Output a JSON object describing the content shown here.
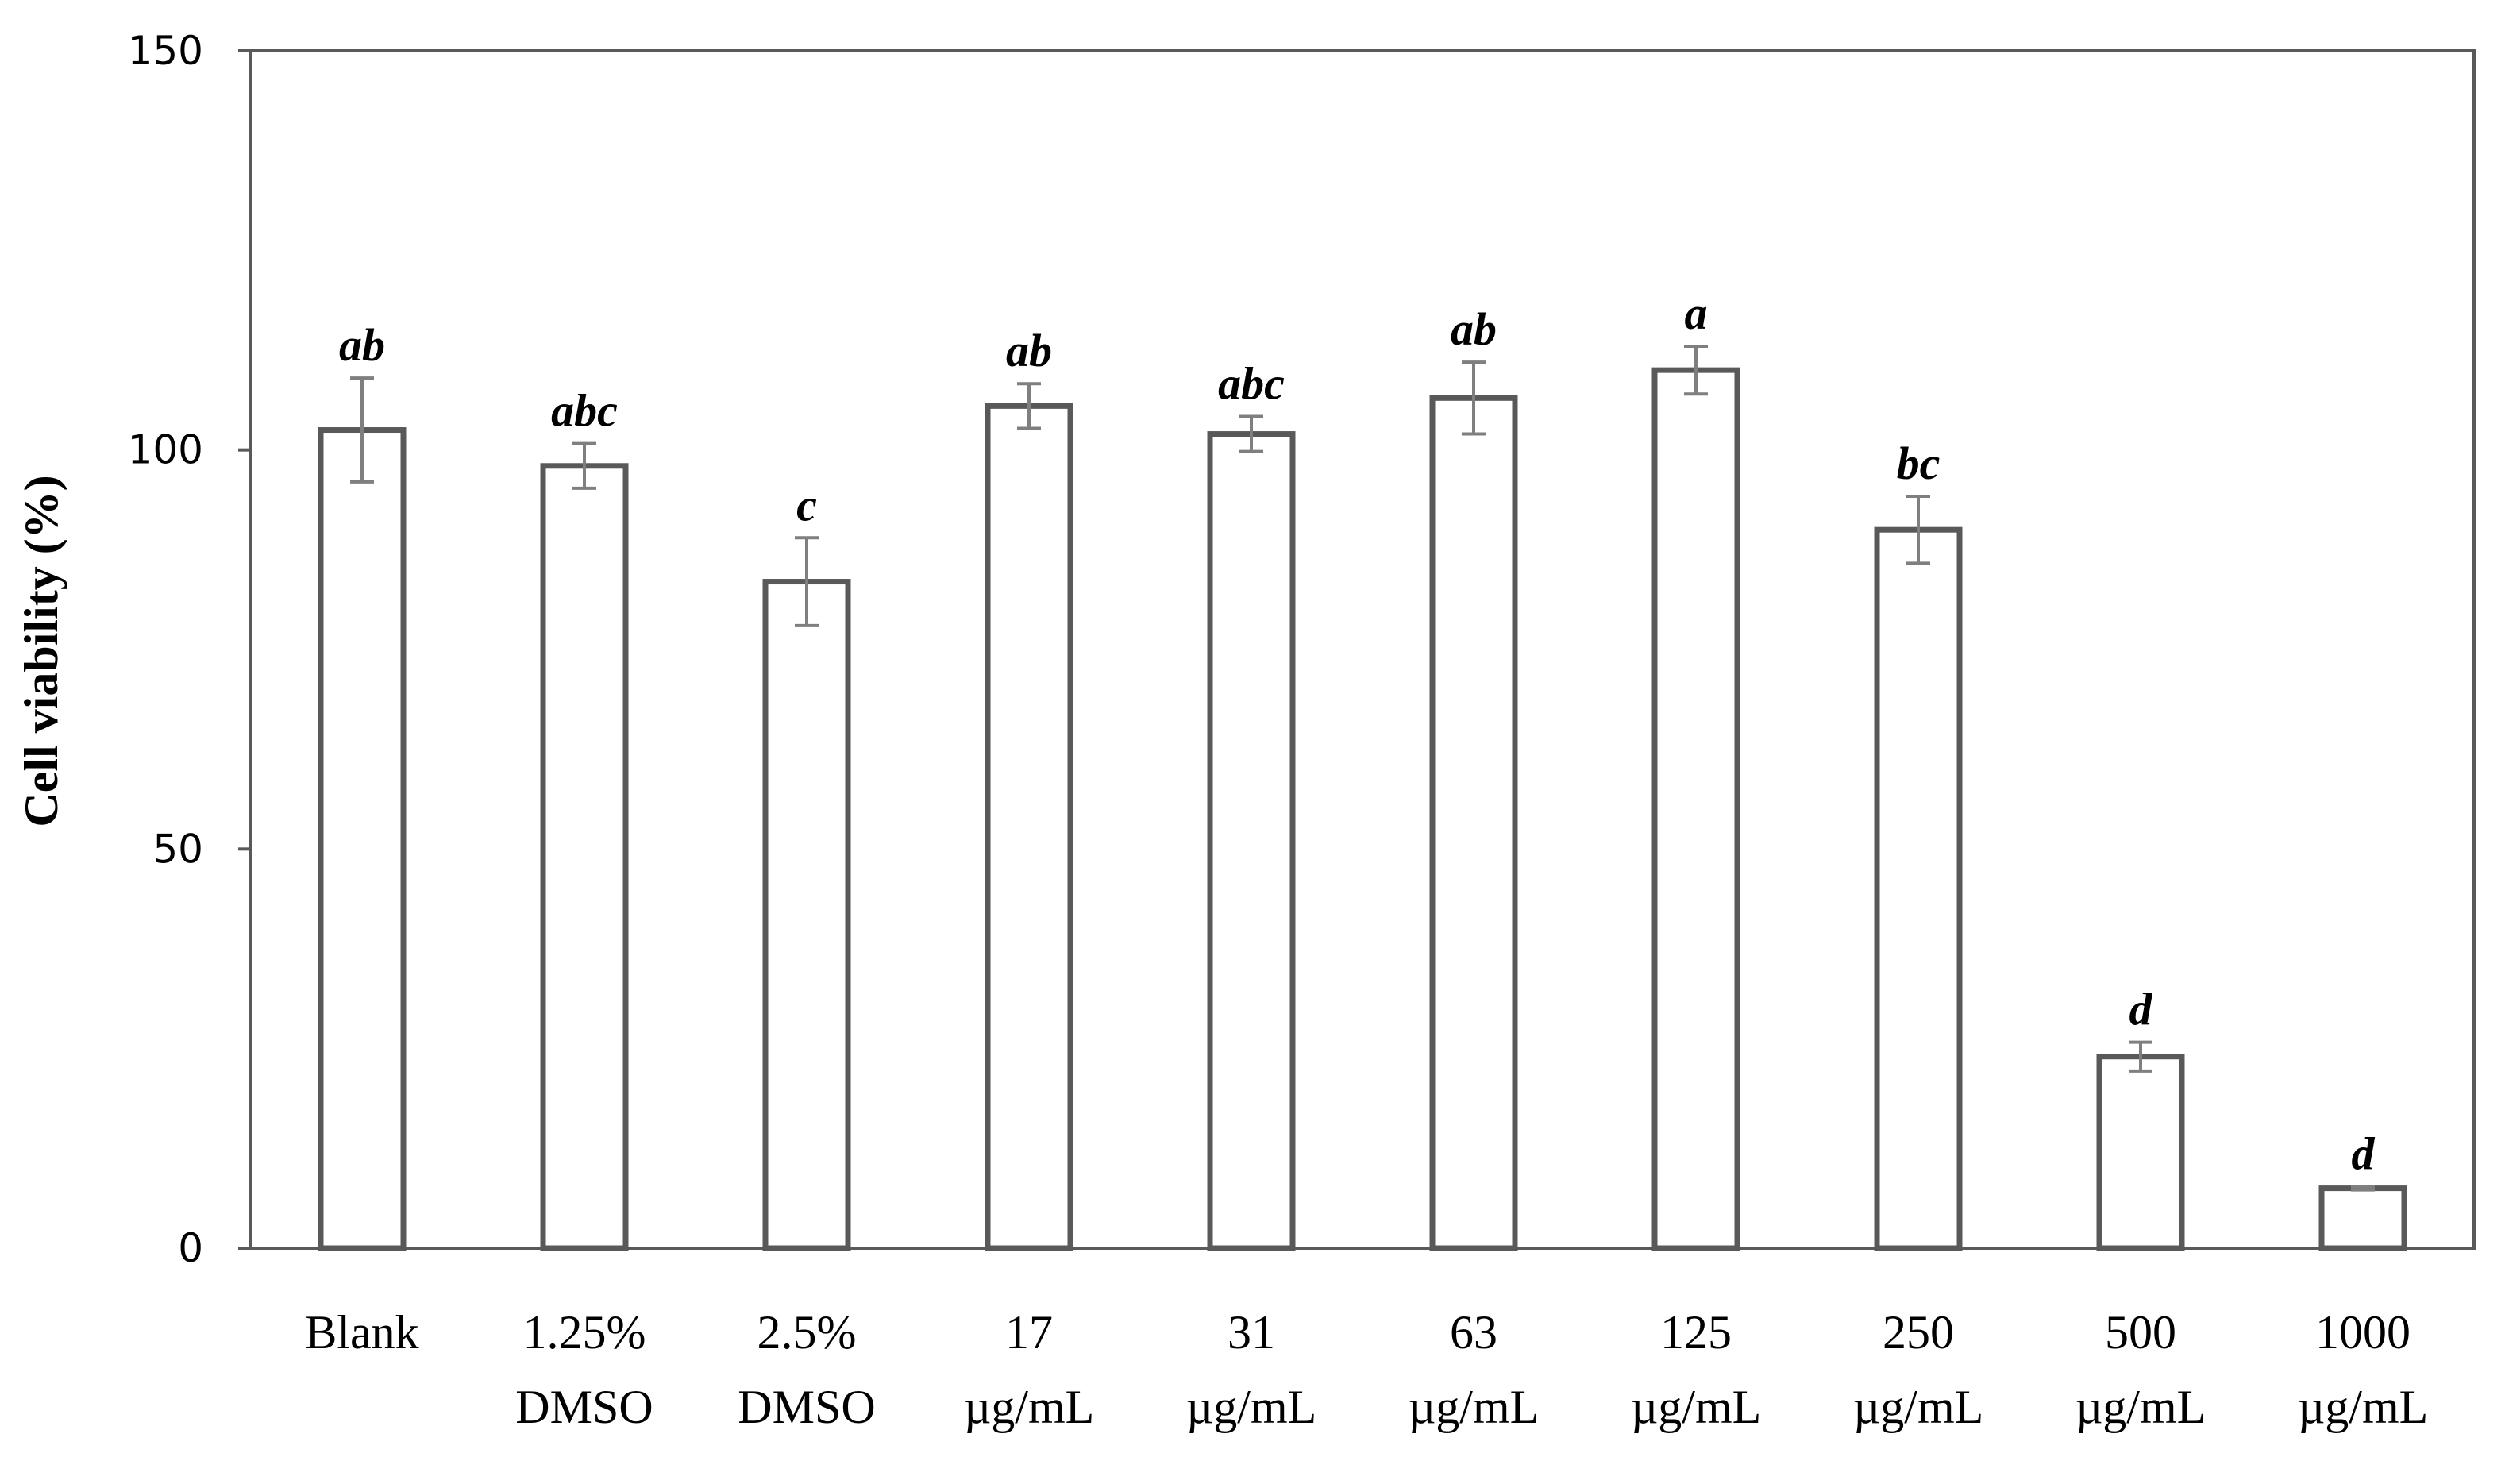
{
  "chart_data": {
    "type": "bar",
    "ylabel": "Cell viability (%)",
    "xlabel": "",
    "ylim": [
      0,
      150
    ],
    "yticks": [
      "0",
      "50",
      "100",
      "150"
    ],
    "grid": false,
    "categories": [
      [
        "Blank"
      ],
      [
        "1.25%",
        "DMSO"
      ],
      [
        "2.5%",
        "DMSO"
      ],
      [
        "17",
        "µg/mL"
      ],
      [
        "31",
        "µg/mL"
      ],
      [
        "63",
        "µg/mL"
      ],
      [
        "125",
        "µg/mL"
      ],
      [
        "250",
        "µg/mL"
      ],
      [
        "500",
        "µg/mL"
      ],
      [
        "1000",
        "µg/mL"
      ]
    ],
    "values": [
      102.5,
      98,
      83.5,
      105.5,
      102,
      106.5,
      110,
      90,
      24,
      7.5
    ],
    "errors": [
      6.5,
      2.8,
      5.5,
      2.8,
      2.2,
      4.5,
      3.0,
      4.2,
      1.8,
      0.2
    ],
    "significance": [
      "ab",
      "abc",
      "c",
      "ab",
      "abc",
      "ab",
      "a",
      "bc",
      "d",
      "d"
    ],
    "colors": {
      "bar_stroke": "#595959",
      "bar_fill": "#ffffff",
      "error_bar": "#7f7f7f",
      "axis": "#595959"
    }
  }
}
